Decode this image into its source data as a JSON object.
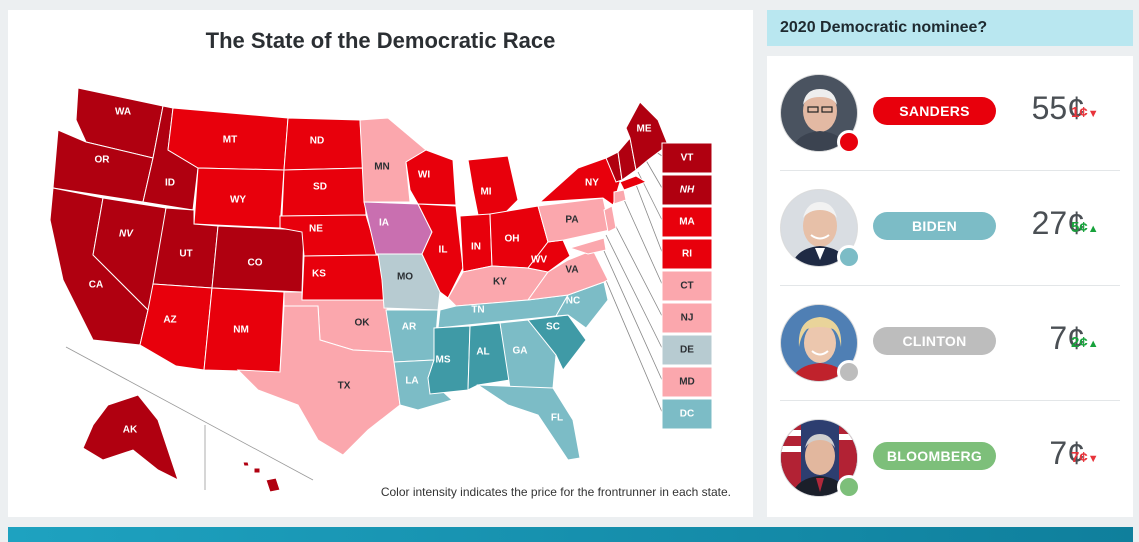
{
  "map": {
    "title": "The State of the Democratic Race",
    "footnote": "Color intensity indicates the price for the frontrunner in each state.",
    "colors": {
      "sanders_strong": "#b00010",
      "sanders": "#e8000c",
      "sanders_light": "#fba7ad",
      "biden": "#7cbcc6",
      "biden_strong": "#3f9aa6",
      "tossup": "#b7cbd1",
      "warren": "#c96fb0"
    },
    "states": [
      {
        "code": "WA",
        "label": "WA",
        "italic": false
      },
      {
        "code": "OR",
        "label": "OR",
        "italic": false
      },
      {
        "code": "CA",
        "label": "CA",
        "italic": false
      },
      {
        "code": "ID",
        "label": "ID",
        "italic": false
      },
      {
        "code": "NV",
        "label": "NV",
        "italic": true
      },
      {
        "code": "MT",
        "label": "MT",
        "italic": false
      },
      {
        "code": "WY",
        "label": "WY",
        "italic": false
      },
      {
        "code": "UT",
        "label": "UT",
        "italic": false
      },
      {
        "code": "AZ",
        "label": "AZ",
        "italic": false
      },
      {
        "code": "CO",
        "label": "CO",
        "italic": false
      },
      {
        "code": "NM",
        "label": "NM",
        "italic": false
      },
      {
        "code": "ND",
        "label": "ND",
        "italic": false
      },
      {
        "code": "SD",
        "label": "SD",
        "italic": false
      },
      {
        "code": "NE",
        "label": "NE",
        "italic": false
      },
      {
        "code": "KS",
        "label": "KS",
        "italic": false
      },
      {
        "code": "OK",
        "label": "OK",
        "italic": false
      },
      {
        "code": "TX",
        "label": "TX",
        "italic": false
      },
      {
        "code": "MN",
        "label": "MN",
        "italic": false
      },
      {
        "code": "IA",
        "label": "IA",
        "italic": false
      },
      {
        "code": "MO",
        "label": "MO",
        "italic": false
      },
      {
        "code": "AR",
        "label": "AR",
        "italic": false
      },
      {
        "code": "LA",
        "label": "LA",
        "italic": false
      },
      {
        "code": "WI",
        "label": "WI",
        "italic": false
      },
      {
        "code": "IL",
        "label": "IL",
        "italic": false
      },
      {
        "code": "MI",
        "label": "MI",
        "italic": false
      },
      {
        "code": "IN",
        "label": "IN",
        "italic": false
      },
      {
        "code": "OH",
        "label": "OH",
        "italic": false
      },
      {
        "code": "KY",
        "label": "KY",
        "italic": false
      },
      {
        "code": "TN",
        "label": "TN",
        "italic": false
      },
      {
        "code": "MS",
        "label": "MS",
        "italic": false
      },
      {
        "code": "AL",
        "label": "AL",
        "italic": false
      },
      {
        "code": "GA",
        "label": "GA",
        "italic": false
      },
      {
        "code": "FL",
        "label": "FL",
        "italic": false
      },
      {
        "code": "SC",
        "label": "SC",
        "italic": false
      },
      {
        "code": "NC",
        "label": "NC",
        "italic": false
      },
      {
        "code": "VA",
        "label": "VA",
        "italic": false
      },
      {
        "code": "WV",
        "label": "WV",
        "italic": false
      },
      {
        "code": "PA",
        "label": "PA",
        "italic": false
      },
      {
        "code": "NY",
        "label": "NY",
        "italic": false
      },
      {
        "code": "ME",
        "label": "ME",
        "italic": false
      },
      {
        "code": "AK",
        "label": "AK",
        "italic": false
      }
    ],
    "small_states": [
      {
        "code": "VT",
        "label": "VT",
        "italic": false
      },
      {
        "code": "NH",
        "label": "NH",
        "italic": true
      },
      {
        "code": "MA",
        "label": "MA",
        "italic": false
      },
      {
        "code": "RI",
        "label": "RI",
        "italic": false
      },
      {
        "code": "CT",
        "label": "CT",
        "italic": false
      },
      {
        "code": "NJ",
        "label": "NJ",
        "italic": false
      },
      {
        "code": "DE",
        "label": "DE",
        "italic": false
      },
      {
        "code": "MD",
        "label": "MD",
        "italic": false
      },
      {
        "code": "DC",
        "label": "DC",
        "italic": false
      }
    ]
  },
  "market": {
    "title": "2020 Democratic nominee?",
    "candidates": [
      {
        "name": "SANDERS",
        "price": "55¢",
        "change": "1¢",
        "direction": "down",
        "arrow": "▼",
        "pill_color": "#e8000c",
        "dot_color": "#e8000c",
        "photo": "sanders-photo"
      },
      {
        "name": "BIDEN",
        "price": "27¢",
        "change": "5¢",
        "direction": "up",
        "arrow": "▲",
        "pill_color": "#7cbcc6",
        "dot_color": "#7cbcc6",
        "photo": "biden-photo"
      },
      {
        "name": "CLINTON",
        "price": "7¢",
        "change": "2¢",
        "direction": "up",
        "arrow": "▲",
        "pill_color": "#bdbdbd",
        "dot_color": "#bdbdbd",
        "photo": "clinton-photo"
      },
      {
        "name": "BLOOMBERG",
        "price": "7¢",
        "change": "7¢",
        "direction": "down",
        "arrow": "▼",
        "pill_color": "#7dbf7a",
        "dot_color": "#7dbf7a",
        "photo": "bloomberg-photo"
      }
    ]
  }
}
